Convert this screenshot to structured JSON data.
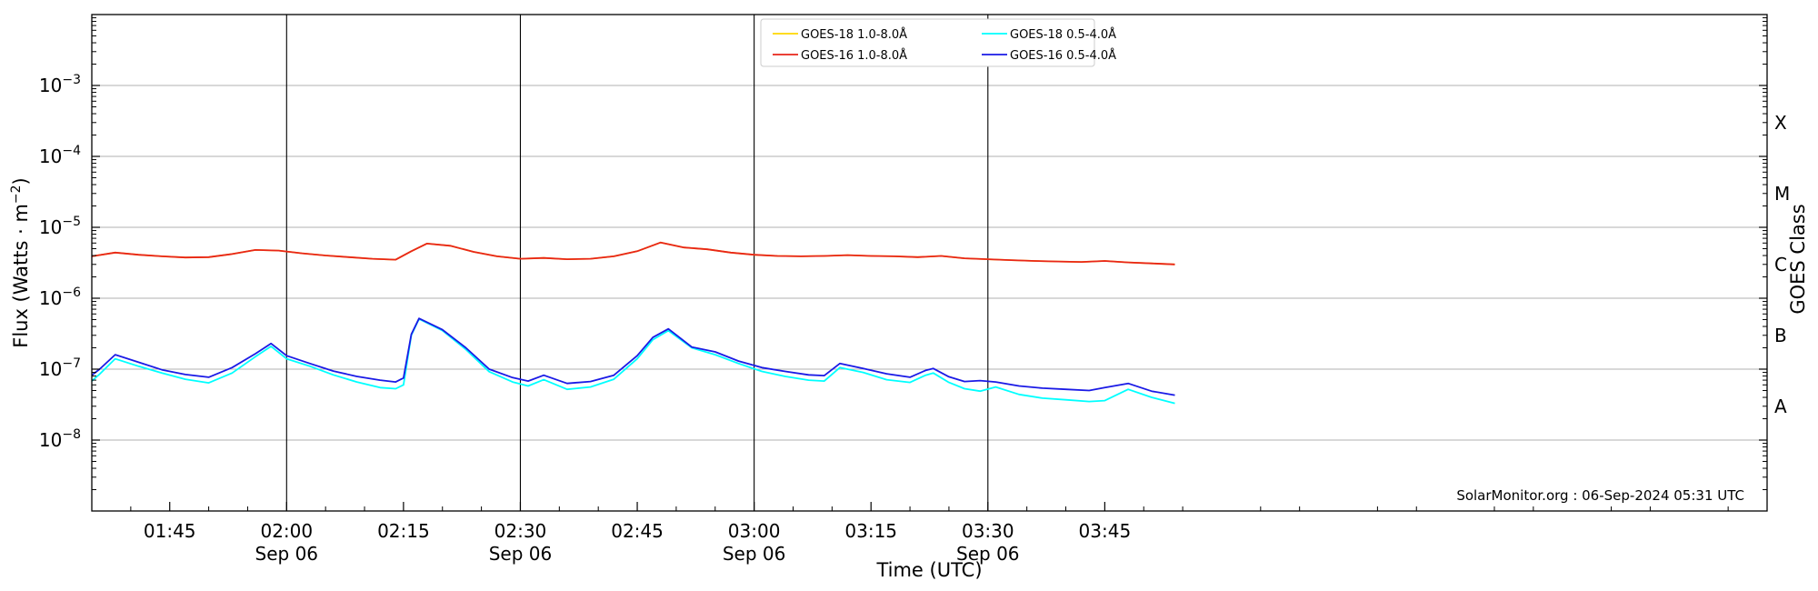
{
  "chart_data": {
    "type": "line",
    "xlabel": "Time (UTC)",
    "ylabel_main": "Flux (Watts · m",
    "ylabel_exp": "−2",
    "ylabel_close": ")",
    "right_label": "GOES Class",
    "credit": "SolarMonitor.org : 06-Sep-2024 05:31 UTC",
    "y_scale": "log",
    "ylim": [
      1e-09,
      0.01
    ],
    "xlim": [
      "01:35",
      "05:10"
    ],
    "grid": "horizontal",
    "legend_location": "top-center",
    "y_ticks": [
      {
        "value": 1e-08,
        "base": "10",
        "exp": "−8"
      },
      {
        "value": 1e-07,
        "base": "10",
        "exp": "−7"
      },
      {
        "value": 1e-06,
        "base": "10",
        "exp": "−6"
      },
      {
        "value": 1e-05,
        "base": "10",
        "exp": "−5"
      },
      {
        "value": 0.0001,
        "base": "10",
        "exp": "−4"
      },
      {
        "value": 0.001,
        "base": "10",
        "exp": "−3"
      }
    ],
    "x_ticks": [
      {
        "time": "01:45",
        "label": "01:45",
        "sub": ""
      },
      {
        "time": "02:00",
        "label": "02:00",
        "sub": "Sep 06"
      },
      {
        "time": "02:15",
        "label": "02:15",
        "sub": ""
      },
      {
        "time": "02:30",
        "label": "02:30",
        "sub": "Sep 06"
      },
      {
        "time": "02:45",
        "label": "02:45",
        "sub": ""
      },
      {
        "time": "03:00",
        "label": "03:00",
        "sub": "Sep 06"
      },
      {
        "time": "03:15",
        "label": "03:15",
        "sub": ""
      },
      {
        "time": "03:30",
        "label": "03:30",
        "sub": "Sep 06"
      },
      {
        "time": "03:45",
        "label": "03:45",
        "sub": ""
      }
    ],
    "vertical_lines": [
      "02:00",
      "02:30",
      "03:00",
      "03:30"
    ],
    "class_labels": [
      {
        "label": "X",
        "value": 0.0003
      },
      {
        "label": "M",
        "value": 3e-05
      },
      {
        "label": "C",
        "value": 3e-06
      },
      {
        "label": "B",
        "value": 3e-07
      },
      {
        "label": "A",
        "value": 3e-08
      }
    ],
    "legend": [
      {
        "name": "GOES-18 1.0-8.0Å",
        "color": "#ffd700"
      },
      {
        "name": "GOES-16 1.0-8.0Å",
        "color": "#e8251a"
      },
      {
        "name": "GOES-18 0.5-4.0Å",
        "color": "#00ffff"
      },
      {
        "name": "GOES-16 0.5-4.0Å",
        "color": "#1a1ae6"
      }
    ],
    "series": [
      {
        "name": "GOES-18 1.0-8.0Å",
        "color": "#ffd700",
        "x": [
          "01:35",
          "01:38",
          "01:41",
          "01:44",
          "01:47",
          "01:50",
          "01:53",
          "01:56",
          "01:59",
          "02:02",
          "02:05",
          "02:08",
          "02:11",
          "02:14",
          "02:16",
          "02:18",
          "02:21",
          "02:24",
          "02:27",
          "02:30",
          "02:33",
          "02:36",
          "02:39",
          "02:42",
          "02:45",
          "02:48",
          "02:51",
          "02:54",
          "02:57",
          "03:00",
          "03:03",
          "03:06",
          "03:09",
          "03:12",
          "03:15",
          "03:18",
          "03:21",
          "03:24",
          "03:27",
          "03:30",
          "03:33",
          "03:36",
          "03:39",
          "03:42",
          "03:45",
          "03:48",
          "03:51",
          "03:54"
        ],
        "values": [
          3.9e-06,
          4.4e-06,
          4.1e-06,
          3.9e-06,
          3.75e-06,
          3.8e-06,
          4.2e-06,
          4.8e-06,
          4.7e-06,
          4.3e-06,
          4e-06,
          3.8e-06,
          3.6e-06,
          3.5e-06,
          4.6e-06,
          5.9e-06,
          5.5e-06,
          4.5e-06,
          3.9e-06,
          3.6e-06,
          3.7e-06,
          3.55e-06,
          3.6e-06,
          3.9e-06,
          4.6e-06,
          6.1e-06,
          5.2e-06,
          4.9e-06,
          4.4e-06,
          4.1e-06,
          3.95e-06,
          3.9e-06,
          3.95e-06,
          4.05e-06,
          3.95e-06,
          3.9e-06,
          3.8e-06,
          3.95e-06,
          3.65e-06,
          3.55e-06,
          3.45e-06,
          3.35e-06,
          3.3e-06,
          3.25e-06,
          3.35e-06,
          3.2e-06,
          3.1e-06,
          3e-06
        ]
      },
      {
        "name": "GOES-16 1.0-8.0Å",
        "color": "#e8251a",
        "x": [
          "01:35",
          "01:38",
          "01:41",
          "01:44",
          "01:47",
          "01:50",
          "01:53",
          "01:56",
          "01:59",
          "02:02",
          "02:05",
          "02:08",
          "02:11",
          "02:14",
          "02:16",
          "02:18",
          "02:21",
          "02:24",
          "02:27",
          "02:30",
          "02:33",
          "02:36",
          "02:39",
          "02:42",
          "02:45",
          "02:48",
          "02:51",
          "02:54",
          "02:57",
          "03:00",
          "03:03",
          "03:06",
          "03:09",
          "03:12",
          "03:15",
          "03:18",
          "03:21",
          "03:24",
          "03:27",
          "03:30",
          "03:33",
          "03:36",
          "03:39",
          "03:42",
          "03:45",
          "03:48",
          "03:51",
          "03:54"
        ],
        "values": [
          3.9e-06,
          4.4e-06,
          4.1e-06,
          3.9e-06,
          3.75e-06,
          3.8e-06,
          4.2e-06,
          4.8e-06,
          4.7e-06,
          4.3e-06,
          4e-06,
          3.8e-06,
          3.6e-06,
          3.5e-06,
          4.6e-06,
          5.9e-06,
          5.5e-06,
          4.5e-06,
          3.9e-06,
          3.6e-06,
          3.7e-06,
          3.55e-06,
          3.6e-06,
          3.9e-06,
          4.6e-06,
          6.1e-06,
          5.2e-06,
          4.9e-06,
          4.4e-06,
          4.1e-06,
          3.95e-06,
          3.9e-06,
          3.95e-06,
          4.05e-06,
          3.95e-06,
          3.9e-06,
          3.8e-06,
          3.95e-06,
          3.65e-06,
          3.55e-06,
          3.45e-06,
          3.35e-06,
          3.3e-06,
          3.25e-06,
          3.35e-06,
          3.2e-06,
          3.1e-06,
          3e-06
        ]
      },
      {
        "name": "GOES-18 0.5-4.0Å",
        "color": "#00ffff",
        "x": [
          "01:35",
          "01:36",
          "01:38",
          "01:41",
          "01:44",
          "01:47",
          "01:50",
          "01:53",
          "01:56",
          "01:58",
          "02:00",
          "02:03",
          "02:06",
          "02:09",
          "02:12",
          "02:14",
          "02:15",
          "02:16",
          "02:17",
          "02:20",
          "02:23",
          "02:26",
          "02:29",
          "02:31",
          "02:33",
          "02:36",
          "02:39",
          "02:42",
          "02:45",
          "02:47",
          "02:49",
          "02:52",
          "02:55",
          "02:58",
          "03:01",
          "03:04",
          "03:07",
          "03:09",
          "03:11",
          "03:14",
          "03:17",
          "03:20",
          "03:22",
          "03:23",
          "03:25",
          "03:27",
          "03:29",
          "03:31",
          "03:34",
          "03:37",
          "03:40",
          "03:43",
          "03:45",
          "03:48",
          "03:51",
          "03:54"
        ],
        "values": [
          6.8e-08,
          8.5e-08,
          1.4e-07,
          1.1e-07,
          8.8e-08,
          7.2e-08,
          6.4e-08,
          8.8e-08,
          1.5e-07,
          2.1e-07,
          1.4e-07,
          1.1e-07,
          8.3e-08,
          6.6e-08,
          5.5e-08,
          5.3e-08,
          6e-08,
          3e-07,
          5.1e-07,
          3.5e-07,
          1.9e-07,
          9.2e-08,
          6.6e-08,
          5.8e-08,
          7.1e-08,
          5.2e-08,
          5.6e-08,
          7.2e-08,
          1.4e-07,
          2.6e-07,
          3.5e-07,
          2e-07,
          1.6e-07,
          1.2e-07,
          9.3e-08,
          7.9e-08,
          7e-08,
          6.8e-08,
          1.05e-07,
          9e-08,
          7.1e-08,
          6.5e-08,
          8.2e-08,
          8.8e-08,
          6.5e-08,
          5.3e-08,
          4.9e-08,
          5.6e-08,
          4.4e-08,
          3.9e-08,
          3.7e-08,
          3.5e-08,
          3.6e-08,
          5.2e-08,
          4e-08,
          3.3e-08
        ]
      },
      {
        "name": "GOES-16 0.5-4.0Å",
        "color": "#1a1ae6",
        "x": [
          "01:35",
          "01:36",
          "01:38",
          "01:41",
          "01:44",
          "01:47",
          "01:50",
          "01:53",
          "01:56",
          "01:58",
          "02:00",
          "02:03",
          "02:06",
          "02:09",
          "02:12",
          "02:14",
          "02:15",
          "02:16",
          "02:17",
          "02:20",
          "02:23",
          "02:26",
          "02:29",
          "02:31",
          "02:33",
          "02:36",
          "02:39",
          "02:42",
          "02:45",
          "02:47",
          "02:49",
          "02:52",
          "02:55",
          "02:58",
          "03:01",
          "03:04",
          "03:07",
          "03:09",
          "03:11",
          "03:14",
          "03:17",
          "03:20",
          "03:22",
          "03:23",
          "03:25",
          "03:27",
          "03:29",
          "03:31",
          "03:34",
          "03:37",
          "03:40",
          "03:43",
          "03:45",
          "03:48",
          "03:51",
          "03:54"
        ],
        "values": [
          8.2e-08,
          1e-07,
          1.6e-07,
          1.25e-07,
          9.8e-08,
          8.4e-08,
          7.7e-08,
          1.05e-07,
          1.65e-07,
          2.3e-07,
          1.55e-07,
          1.2e-07,
          9.4e-08,
          7.9e-08,
          7e-08,
          6.6e-08,
          7.5e-08,
          3.1e-07,
          5.2e-07,
          3.6e-07,
          2e-07,
          1e-07,
          7.6e-08,
          6.8e-08,
          8.2e-08,
          6.3e-08,
          6.7e-08,
          8.2e-08,
          1.55e-07,
          2.8e-07,
          3.7e-07,
          2.05e-07,
          1.75e-07,
          1.3e-07,
          1.05e-07,
          9.3e-08,
          8.3e-08,
          8.1e-08,
          1.2e-07,
          1.02e-07,
          8.6e-08,
          7.7e-08,
          9.6e-08,
          1.02e-07,
          7.8e-08,
          6.7e-08,
          6.9e-08,
          6.6e-08,
          5.8e-08,
          5.4e-08,
          5.2e-08,
          5e-08,
          5.5e-08,
          6.3e-08,
          4.9e-08,
          4.3e-08
        ]
      }
    ]
  }
}
